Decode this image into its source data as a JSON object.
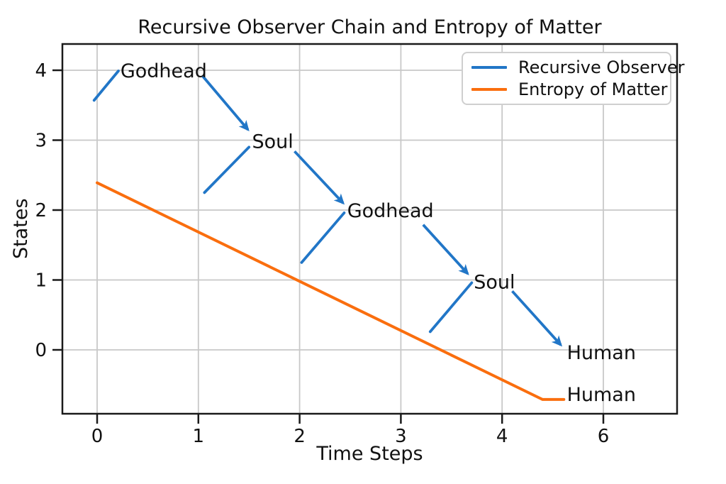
{
  "chart_data": {
    "type": "line",
    "title": "Recursive Observer Chain and Entropy of Matter",
    "xlabel": "Time Steps",
    "ylabel": "States",
    "grid": true,
    "x_tick_labels": [
      "0",
      "1",
      "2",
      "3",
      "4",
      "6"
    ],
    "x_tick_positions": [
      0,
      1,
      2,
      3,
      4,
      5
    ],
    "y_tick_labels": [
      "4",
      "3",
      "2",
      "1",
      "0"
    ],
    "y_tick_values": [
      4,
      3,
      2,
      1,
      0
    ],
    "xlim": [
      -0.34,
      5.73
    ],
    "ylim": [
      -0.91,
      4.38
    ],
    "legend": {
      "position": "upper right",
      "entries": [
        {
          "label": "Recursive Observer",
          "color": "#2176c7"
        },
        {
          "label": "Entropy of Matter",
          "color": "#fa6e0e"
        }
      ]
    },
    "series": [
      {
        "name": "Recursive Observer",
        "color": "#2176c7",
        "style": "labeled chain: short rising segments into each label, arrows between labels",
        "points": [
          {
            "label": "Godhead",
            "x": 0.21,
            "y": 3.99
          },
          {
            "label": "Soul",
            "x": 1.5,
            "y": 2.95
          },
          {
            "label": "Godhead",
            "x": 2.44,
            "y": 1.98
          },
          {
            "label": "Soul",
            "x": 3.7,
            "y": 0.96
          },
          {
            "label": "Human",
            "x": 4.6,
            "y": 0.0
          }
        ],
        "segments": [
          [
            -0.03,
            3.57,
            0.21,
            3.99
          ],
          [
            1.06,
            2.25,
            1.5,
            2.9
          ],
          [
            2.02,
            1.25,
            2.44,
            1.96
          ],
          [
            3.29,
            0.26,
            3.7,
            0.96
          ]
        ],
        "arrows": [
          [
            1.04,
            3.92,
            1.49,
            3.15
          ],
          [
            1.95,
            2.84,
            2.43,
            2.1
          ],
          [
            3.22,
            1.79,
            3.66,
            1.09
          ],
          [
            4.1,
            0.84,
            4.58,
            0.07
          ]
        ],
        "labels": [
          {
            "text": "Godhead",
            "x": 0.23,
            "y": 3.99
          },
          {
            "text": "Soul",
            "x": 1.53,
            "y": 2.98
          },
          {
            "text": "Godhead",
            "x": 2.47,
            "y": 1.99
          },
          {
            "text": "Soul",
            "x": 3.72,
            "y": 0.97
          },
          {
            "text": "Human",
            "x": 4.64,
            "y": -0.04
          }
        ]
      },
      {
        "name": "Entropy of Matter",
        "color": "#fa6e0e",
        "style": "solid line",
        "points": [
          {
            "x": 0.0,
            "y": 2.39
          },
          {
            "x": 4.4,
            "y": -0.71
          },
          {
            "x": 4.61,
            "y": -0.71
          }
        ],
        "labels": [
          {
            "text": "Human",
            "x": 4.64,
            "y": -0.64
          }
        ]
      }
    ],
    "colors": {
      "grid": "#c8c8c8",
      "spine": "#1a1a1a",
      "text": "#111111"
    }
  }
}
